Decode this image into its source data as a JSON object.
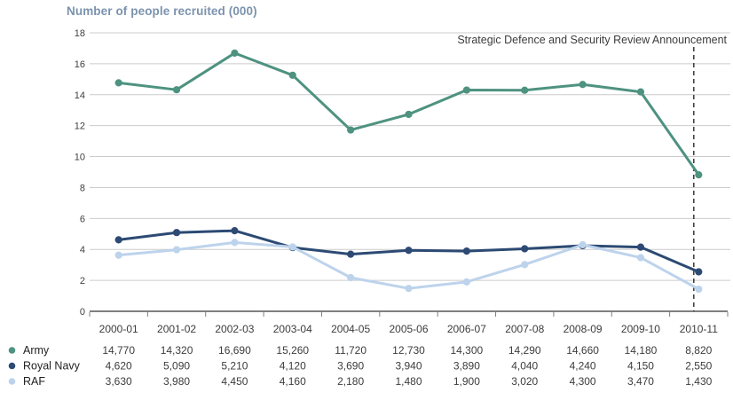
{
  "chart_data": {
    "type": "line",
    "title": "Number of people recruited (000)",
    "unit": "thousands of people",
    "categories": [
      "2000-01",
      "2001-02",
      "2002-03",
      "2003-04",
      "2004-05",
      "2005-06",
      "2006-07",
      "2007-08",
      "2008-09",
      "2009-10",
      "2010-11"
    ],
    "series": [
      {
        "name": "Army",
        "color": "#4e9280",
        "values": [
          14770,
          14320,
          16690,
          15260,
          11720,
          12730,
          14300,
          14290,
          14660,
          14180,
          8820
        ],
        "display_values": [
          "14,770",
          "14,320",
          "16,690",
          "15,260",
          "11,720",
          "12,730",
          "14,300",
          "14,290",
          "14,660",
          "14,180",
          "8,820"
        ]
      },
      {
        "name": "Royal Navy",
        "color": "#2c4a73",
        "values": [
          4620,
          5090,
          5210,
          4120,
          3690,
          3940,
          3890,
          4040,
          4240,
          4150,
          2550
        ],
        "display_values": [
          "4,620",
          "5,090",
          "5,210",
          "4,120",
          "3,690",
          "3,940",
          "3,890",
          "4,040",
          "4,240",
          "4,150",
          "2,550"
        ]
      },
      {
        "name": "RAF",
        "color": "#bdd3ec",
        "values": [
          3630,
          3980,
          4450,
          4160,
          2180,
          1480,
          1900,
          3020,
          4300,
          3470,
          1430
        ],
        "display_values": [
          "3,630",
          "3,980",
          "4,450",
          "4,160",
          "2,180",
          "1,480",
          "1,900",
          "3,020",
          "4,300",
          "3,470",
          "1,430"
        ]
      }
    ],
    "ylim": [
      0,
      18
    ],
    "yticks": [
      0,
      2,
      4,
      6,
      8,
      10,
      12,
      14,
      16,
      18
    ],
    "grid": "horizontal",
    "legend_position": "bottom-left-table",
    "annotation": {
      "text": "Strategic Defence and Security Review Announcement",
      "category": "2010-11",
      "style": "vertical-dashed-line"
    }
  },
  "colors": {
    "title_text": "#7b93ae",
    "grid_line": "#cccccc",
    "axis_line": "#7f7f7f",
    "tick_text": "#3f3f3f",
    "table_text": "#3c3c3c",
    "legend_text": "#1f1f1f",
    "annotation_line": "#1a1a1a",
    "army": "#4e9280",
    "royal_navy": "#2c4a73",
    "raf": "#bdd3ec"
  }
}
